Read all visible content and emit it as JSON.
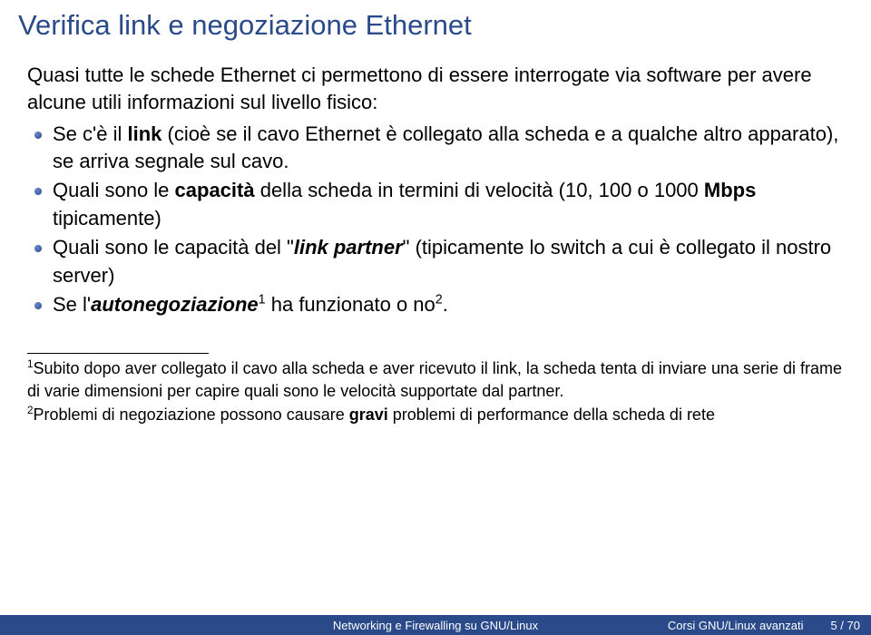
{
  "title": "Verifica link e negoziazione Ethernet",
  "intro": "Quasi tutte le schede Ethernet ci permettono di essere interrogate via software per avere alcune utili informazioni sul livello fisico:",
  "b1a": "Se c'è il ",
  "b1b": "link",
  "b1c": " (cioè se il cavo Ethernet è collegato alla scheda e a qualche altro apparato), se arriva segnale sul cavo.",
  "b2a": "Quali sono le ",
  "b2b": "capacità",
  "b2c": " della scheda in termini di velocità (10, 100 o 1000 ",
  "b2d": "Mbps",
  "b2e": " tipicamente)",
  "b3a": "Quali sono le capacità del \"",
  "b3b": "link partner",
  "b3c": "\" (tipicamente lo switch a cui è collegato il nostro server)",
  "b4a": "Se l'",
  "b4b": "autonegoziazione",
  "b4c": " ha funzionato o no",
  "sup1": "1",
  "sup2": "2",
  "period": ".",
  "fn1sup": "1",
  "fn1": "Subito dopo aver collegato il cavo alla scheda e aver ricevuto il link, la scheda tenta di inviare una serie di frame di varie dimensioni per capire quali sono le velocità supportate dal partner.",
  "fn2sup": "2",
  "fn2a": "Problemi di negoziazione possono causare ",
  "fn2b": "gravi",
  "fn2c": " problemi di performance della scheda di rete",
  "footer_center": "Networking e Firewalling su GNU/Linux",
  "footer_right": "Corsi GNU/Linux avanzati",
  "footer_page": "5 / 70",
  "colors": {
    "title": "#2a4a8a",
    "footer_bg": "#2a4a8a",
    "bg": "#ffffff"
  }
}
